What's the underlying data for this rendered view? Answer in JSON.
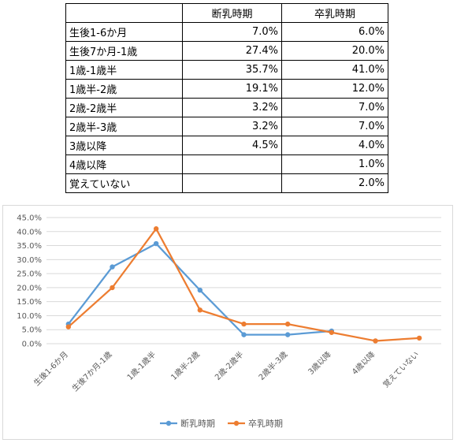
{
  "table": {
    "headers": [
      "",
      "断乳時期",
      "卒乳時期"
    ],
    "rows": [
      [
        "生後1-6か月",
        "7.0%",
        "6.0%"
      ],
      [
        "生後7か月-1歳",
        "27.4%",
        "20.0%"
      ],
      [
        "1歳-1歳半",
        "35.7%",
        "41.0%"
      ],
      [
        "1歳半-2歳",
        "19.1%",
        "12.0%"
      ],
      [
        "2歳-2歳半",
        "3.2%",
        "7.0%"
      ],
      [
        "2歳半-3歳",
        "3.2%",
        "7.0%"
      ],
      [
        "3歳以降",
        "4.5%",
        "4.0%"
      ],
      [
        "4歳以降",
        "",
        "1.0%"
      ],
      [
        "覚えていない",
        "",
        "2.0%"
      ]
    ]
  },
  "chart_data": {
    "type": "line",
    "categories": [
      "生後1-6か月",
      "生後7か月-1歳",
      "1歳-1歳半",
      "1歳半-2歳",
      "2歳-2歳半",
      "2歳半-3歳",
      "3歳以降",
      "4歳以降",
      "覚えていない"
    ],
    "series": [
      {
        "name": "断乳時期",
        "color": "#5b9bd5",
        "values": [
          7.0,
          27.4,
          35.7,
          19.1,
          3.2,
          3.2,
          4.5,
          null,
          null
        ]
      },
      {
        "name": "卒乳時期",
        "color": "#ed7d31",
        "values": [
          6.0,
          20.0,
          41.0,
          12.0,
          7.0,
          7.0,
          4.0,
          1.0,
          2.0
        ]
      }
    ],
    "yticks": [
      "0.0%",
      "5.0%",
      "10.0%",
      "15.0%",
      "20.0%",
      "25.0%",
      "30.0%",
      "35.0%",
      "40.0%",
      "45.0%"
    ],
    "ylim": [
      0,
      45
    ],
    "grid": true,
    "legend_position": "bottom",
    "gridline_color": "#d9d9d9"
  }
}
